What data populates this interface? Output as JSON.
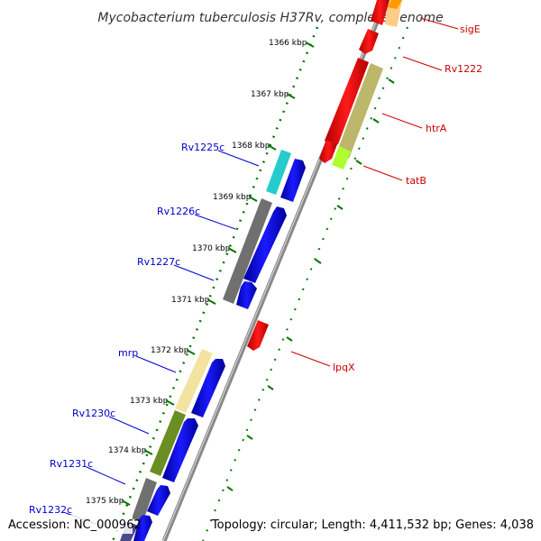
{
  "header": {
    "title": "Mycobacterium tuberculosis H37Rv, complete genome"
  },
  "footer": {
    "accession": "Accession: NC_000962",
    "summary": "Topology: circular; Length: 4,411,532 bp; Genes: 4,038"
  },
  "colors": {
    "forward_label": "#0000cc",
    "reverse_label": "#cc0000",
    "tick": "#007700",
    "backbone": "#8c8c8c"
  },
  "ruler": {
    "labels": [
      "1366 kbp",
      "1367 kbp",
      "1368 kbp",
      "1369 kbp",
      "1370 kbp",
      "1371 kbp",
      "1372 kbp",
      "1373 kbp",
      "1374 kbp",
      "1375 kbp"
    ]
  },
  "genes": {
    "forward_labels": [
      "Rv1225c",
      "Rv1226c",
      "Rv1227c",
      "mrp",
      "Rv1230c",
      "Rv1231c",
      "Rv1232c"
    ],
    "reverse_labels": [
      "sigE",
      "Rv1222",
      "htrA",
      "tatB",
      "lpqX"
    ]
  }
}
